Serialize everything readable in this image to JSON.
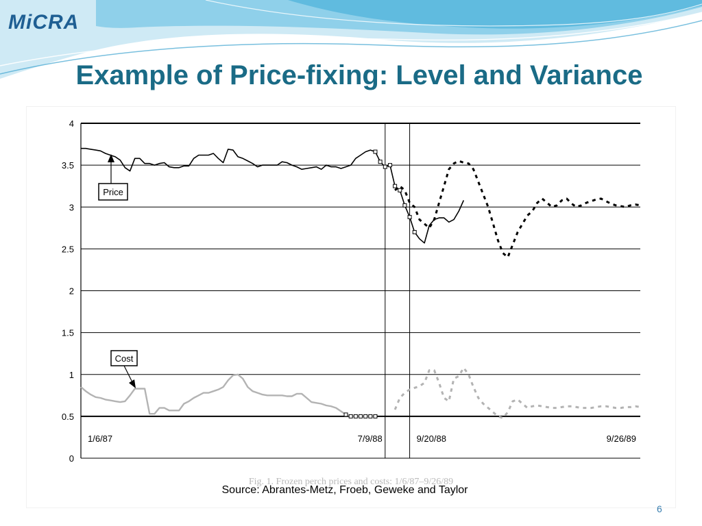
{
  "logo": {
    "text": "MiCRA"
  },
  "slide": {
    "title": "Example of Price-fixing: Level and Variance",
    "source": "Source: Abrantes-Metz, Froeb, Geweke and Taylor",
    "page_number": "6"
  },
  "colors": {
    "title": "#1a6b86",
    "logo": "#1f5f93",
    "wave_light": "#cfeaf5",
    "wave_mid": "#8fd0ea",
    "price_line": "#000000",
    "cost_line": "#b3b3b3"
  },
  "chart_data": {
    "type": "line",
    "title": "Fig. 1. Frozen perch prices and costs: 1/6/87–9/26/89",
    "xlabel": "",
    "ylabel": "",
    "ylim": [
      0,
      4
    ],
    "yticks": [
      "0",
      "0.5",
      "1",
      "1.5",
      "2",
      "2.5",
      "3",
      "3.5",
      "4"
    ],
    "grid": true,
    "x_period_labels": [
      "1/6/87",
      "7/9/88",
      "9/20/88",
      "9/26/89"
    ],
    "annotations": [
      "Price",
      "Cost"
    ],
    "series": [
      {
        "name": "Price",
        "segment": "collusion",
        "style": "solid",
        "x": [
          0,
          1,
          2,
          3,
          4,
          5,
          6,
          7,
          8,
          9,
          10,
          11,
          12,
          13,
          14,
          15,
          16,
          17,
          18,
          19,
          20,
          21,
          22,
          23,
          24,
          25,
          26,
          27,
          28,
          29,
          30,
          31,
          32,
          33,
          34,
          35,
          36,
          37,
          38,
          39,
          40,
          41,
          42,
          43,
          44,
          45,
          46,
          47,
          48,
          49,
          50,
          51,
          52,
          53,
          54,
          55,
          56,
          57,
          58,
          59,
          60,
          61,
          62,
          63,
          64,
          65,
          66,
          67,
          68,
          69,
          70,
          71,
          72,
          73,
          74,
          75,
          76,
          77,
          78
        ],
        "y": [
          3.7,
          3.7,
          3.69,
          3.68,
          3.67,
          3.64,
          3.62,
          3.6,
          3.56,
          3.47,
          3.43,
          3.58,
          3.58,
          3.52,
          3.52,
          3.5,
          3.52,
          3.53,
          3.48,
          3.47,
          3.47,
          3.49,
          3.49,
          3.58,
          3.62,
          3.62,
          3.62,
          3.64,
          3.58,
          3.53,
          3.69,
          3.68,
          3.6,
          3.58,
          3.55,
          3.52,
          3.48,
          3.5,
          3.5,
          3.5,
          3.5,
          3.54,
          3.53,
          3.5,
          3.48,
          3.45,
          3.46,
          3.47,
          3.48,
          3.45,
          3.5,
          3.48,
          3.48,
          3.46,
          3.48,
          3.5,
          3.58,
          3.62,
          3.66,
          3.68,
          3.66,
          3.54,
          3.48,
          3.5,
          3.25,
          3.2,
          3.02,
          2.88,
          2.7,
          2.62,
          2.57,
          2.78,
          2.85,
          2.87,
          2.87,
          2.82,
          2.85,
          2.95,
          3.08
        ]
      },
      {
        "name": "Price",
        "segment": "post-collusion",
        "style": "dashed",
        "x": [
          64,
          65,
          66,
          67,
          68,
          69,
          70,
          71,
          72,
          73,
          74,
          75,
          76,
          77,
          78,
          79,
          80,
          81,
          82,
          83,
          84,
          85,
          86,
          87,
          88,
          89,
          90,
          91,
          92,
          93,
          94,
          95,
          96,
          97,
          98,
          99,
          100,
          101,
          102,
          103,
          104,
          105,
          106,
          107,
          108,
          109,
          110,
          111,
          112,
          113,
          114
        ],
        "y": [
          3.2,
          3.25,
          3.2,
          3.05,
          3.0,
          2.85,
          2.8,
          2.75,
          2.85,
          3.05,
          3.25,
          3.45,
          3.52,
          3.55,
          3.53,
          3.52,
          3.45,
          3.3,
          3.15,
          3.0,
          2.8,
          2.6,
          2.45,
          2.4,
          2.55,
          2.7,
          2.8,
          2.9,
          2.95,
          3.05,
          3.1,
          3.05,
          3.0,
          3.02,
          3.08,
          3.1,
          3.04,
          3.0,
          3.02,
          3.05,
          3.07,
          3.09,
          3.1,
          3.07,
          3.04,
          3.02,
          3.01,
          3.0,
          3.02,
          3.03,
          3.02
        ]
      },
      {
        "name": "Cost",
        "segment": "collusion",
        "style": "solid",
        "x": [
          0,
          1,
          2,
          3,
          4,
          5,
          6,
          7,
          8,
          9,
          10,
          11,
          12,
          13,
          14,
          15,
          16,
          17,
          18,
          19,
          20,
          21,
          22,
          23,
          24,
          25,
          26,
          27,
          28,
          29,
          30,
          31,
          32,
          33,
          34,
          35,
          36,
          37,
          38,
          39,
          40,
          41,
          42,
          43,
          44,
          45,
          46,
          47,
          48,
          49,
          50,
          51,
          52,
          53,
          54,
          55,
          56,
          57,
          58,
          59,
          60
        ],
        "y": [
          0.85,
          0.8,
          0.76,
          0.73,
          0.72,
          0.7,
          0.69,
          0.68,
          0.67,
          0.68,
          0.75,
          0.83,
          0.83,
          0.83,
          0.53,
          0.53,
          0.6,
          0.6,
          0.57,
          0.57,
          0.57,
          0.65,
          0.68,
          0.72,
          0.75,
          0.78,
          0.78,
          0.8,
          0.82,
          0.85,
          0.93,
          0.99,
          1.0,
          0.95,
          0.85,
          0.8,
          0.78,
          0.76,
          0.75,
          0.75,
          0.75,
          0.75,
          0.74,
          0.74,
          0.77,
          0.77,
          0.72,
          0.67,
          0.66,
          0.65,
          0.63,
          0.62,
          0.6,
          0.56,
          0.52,
          0.5,
          0.5,
          0.5,
          0.5,
          0.5,
          0.5
        ]
      },
      {
        "name": "Cost",
        "segment": "post-collusion",
        "style": "dashed",
        "x": [
          64,
          65,
          66,
          67,
          68,
          69,
          70,
          71,
          72,
          73,
          74,
          75,
          76,
          77,
          78,
          79,
          80,
          81,
          82,
          83,
          84,
          85,
          86,
          87,
          88,
          89,
          90,
          91,
          92,
          93,
          94,
          95,
          96,
          97,
          98,
          99,
          100,
          101,
          102,
          103,
          104,
          105,
          106,
          107,
          108,
          109,
          110,
          111,
          112,
          113,
          114
        ],
        "y": [
          0.58,
          0.72,
          0.78,
          0.82,
          0.84,
          0.86,
          0.9,
          1.05,
          1.05,
          0.9,
          0.72,
          0.68,
          0.95,
          0.98,
          1.08,
          1.0,
          0.85,
          0.72,
          0.65,
          0.6,
          0.55,
          0.5,
          0.48,
          0.55,
          0.68,
          0.7,
          0.65,
          0.6,
          0.62,
          0.63,
          0.62,
          0.61,
          0.6,
          0.6,
          0.61,
          0.62,
          0.62,
          0.61,
          0.6,
          0.6,
          0.6,
          0.61,
          0.62,
          0.62,
          0.61,
          0.6,
          0.6,
          0.61,
          0.61,
          0.62,
          0.61
        ]
      }
    ]
  }
}
